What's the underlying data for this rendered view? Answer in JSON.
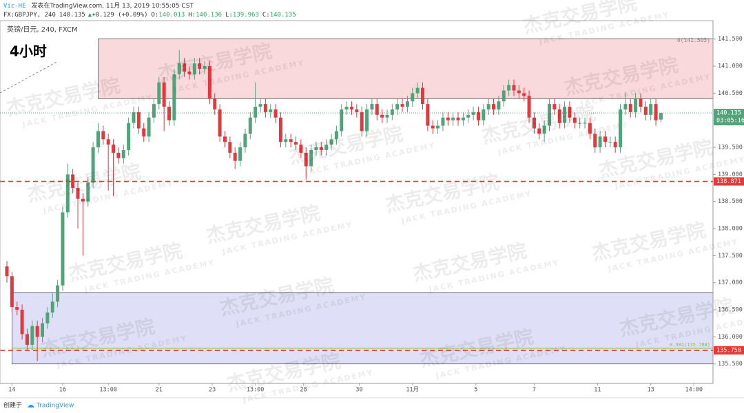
{
  "header": {
    "author": "Vic-HE",
    "published": "发表在TradingView.com, 11月 13, 2019 10:55:05 CST",
    "symbol": "FX:GBPJPY, 240",
    "change": "+0.129 (+0.09%)",
    "o_label": "O:",
    "h_label": "H:",
    "l_label": "L:",
    "c_label": "C:"
  },
  "footer": {
    "created": "创建于",
    "brand": "TradingView"
  },
  "watermark": {
    "cn": "杰克交易学院",
    "en": "JACK TRADING ACADEMY"
  },
  "chart_data": {
    "type": "candlestick",
    "legend": "英镑/日元, 240, FXCM",
    "timeframe": "4小时",
    "countdown": "03:05:16",
    "up_color": "#53a37a",
    "down_color": "#e0393e",
    "grid": false,
    "open": [
      137.3,
      137.12,
      136.55,
      136.5,
      136.05,
      135.85,
      136.2,
      136.0,
      136.25,
      136.45,
      136.65,
      136.95,
      138.3,
      139.0,
      138.75,
      138.55,
      138.5,
      138.85,
      139.5,
      139.8,
      139.65,
      139.55,
      139.4,
      139.3,
      139.45,
      139.95,
      140.15,
      139.85,
      139.7,
      140.05,
      140.3,
      140.7,
      140.25,
      140.0,
      140.85,
      141.05,
      140.9,
      140.85,
      141.05,
      140.95,
      141.0,
      140.4,
      140.2,
      139.7,
      139.6,
      139.4,
      139.25,
      139.5,
      139.75,
      140.05,
      140.25,
      140.3,
      140.15,
      140.2,
      140.05,
      139.6,
      139.65,
      139.6,
      139.55,
      139.4,
      139.15,
      139.45,
      139.5,
      139.45,
      139.55,
      139.65,
      139.8,
      140.2,
      140.25,
      140.2,
      140.15,
      139.8,
      140.2,
      140.3,
      140.1,
      140.05,
      140.1,
      140.2,
      140.3,
      140.25,
      140.35,
      140.5,
      140.6,
      140.3,
      139.9,
      139.85,
      139.9,
      140.05,
      140.0,
      140.05,
      140.0,
      140.05,
      140.1,
      140.15,
      140.0,
      140.2,
      140.3,
      140.2,
      140.35,
      140.55,
      140.65,
      140.55,
      140.5,
      140.45,
      140.05,
      139.85,
      139.75,
      139.9,
      140.3,
      140.2,
      139.95,
      140.25,
      140.05,
      139.95,
      139.95,
      139.95,
      139.75,
      139.5,
      139.7,
      139.6,
      139.6,
      139.5,
      140.2,
      140.3,
      140.15,
      140.4,
      140.25,
      140.1,
      140.3,
      140.013
    ],
    "high": [
      137.4,
      137.2,
      136.65,
      136.6,
      136.15,
      136.3,
      136.3,
      136.35,
      136.55,
      136.8,
      137.05,
      138.4,
      139.2,
      139.1,
      138.85,
      138.65,
      138.95,
      139.6,
      139.95,
      139.9,
      139.75,
      139.65,
      139.5,
      139.55,
      140.05,
      140.25,
      140.25,
      139.95,
      140.15,
      140.4,
      140.8,
      140.8,
      140.35,
      140.95,
      141.3,
      141.15,
      141.0,
      141.15,
      141.15,
      141.1,
      141.1,
      140.5,
      140.3,
      139.8,
      139.7,
      139.5,
      139.6,
      139.85,
      140.15,
      140.7,
      140.4,
      140.4,
      140.3,
      140.3,
      140.15,
      139.75,
      139.75,
      139.7,
      139.65,
      139.5,
      139.55,
      139.6,
      139.6,
      139.65,
      139.75,
      139.9,
      140.3,
      140.35,
      140.35,
      140.3,
      140.25,
      140.3,
      140.4,
      140.4,
      140.2,
      140.2,
      140.3,
      140.4,
      140.4,
      140.45,
      140.6,
      140.7,
      140.7,
      140.4,
      140.0,
      140.0,
      140.15,
      140.15,
      140.15,
      140.15,
      140.15,
      140.2,
      140.25,
      140.25,
      140.3,
      140.4,
      140.4,
      140.45,
      140.65,
      140.75,
      140.75,
      140.65,
      140.6,
      140.55,
      140.15,
      139.95,
      140.0,
      140.4,
      140.4,
      140.3,
      140.35,
      140.35,
      140.15,
      140.05,
      140.05,
      140.05,
      139.85,
      139.8,
      139.8,
      139.7,
      139.7,
      140.3,
      140.5,
      140.4,
      140.5,
      140.5,
      140.35,
      140.4,
      140.4,
      140.136
    ],
    "low": [
      137.0,
      136.45,
      136.4,
      135.95,
      135.75,
      135.75,
      135.55,
      135.9,
      136.15,
      136.35,
      136.55,
      136.85,
      138.2,
      138.65,
      138.0,
      137.5,
      138.4,
      138.75,
      139.4,
      139.55,
      138.7,
      138.6,
      139.2,
      139.2,
      139.35,
      139.85,
      139.75,
      139.6,
      139.6,
      139.95,
      140.2,
      139.8,
      139.9,
      139.9,
      140.75,
      140.8,
      140.75,
      140.75,
      140.85,
      140.85,
      140.3,
      140.1,
      139.6,
      139.5,
      139.3,
      139.1,
      139.15,
      139.4,
      139.65,
      139.95,
      140.15,
      140.05,
      140.05,
      139.95,
      139.5,
      139.5,
      139.5,
      139.45,
      139.3,
      138.9,
      139.05,
      139.35,
      139.35,
      139.35,
      139.45,
      139.55,
      139.7,
      140.1,
      140.1,
      140.05,
      139.7,
      139.7,
      140.1,
      140.0,
      139.95,
      139.95,
      140.0,
      140.1,
      140.15,
      140.15,
      140.25,
      140.4,
      140.2,
      139.8,
      139.75,
      139.75,
      139.8,
      139.9,
      139.9,
      139.9,
      139.9,
      139.95,
      140.0,
      139.9,
      139.9,
      140.1,
      140.1,
      140.1,
      140.25,
      140.45,
      140.45,
      140.4,
      140.35,
      139.95,
      139.75,
      139.65,
      139.6,
      139.8,
      140.1,
      139.85,
      139.85,
      139.95,
      139.85,
      139.85,
      139.85,
      139.65,
      139.4,
      139.4,
      139.5,
      139.5,
      139.4,
      139.4,
      140.1,
      140.05,
      140.05,
      140.15,
      140.0,
      140.0,
      139.9,
      139.963
    ],
    "close": [
      137.12,
      136.55,
      136.5,
      136.05,
      135.85,
      136.2,
      136.0,
      136.25,
      136.45,
      136.65,
      136.95,
      138.3,
      139.0,
      138.75,
      138.55,
      138.5,
      138.85,
      139.5,
      139.8,
      139.65,
      139.55,
      139.4,
      139.3,
      139.45,
      139.95,
      140.15,
      139.85,
      139.7,
      140.05,
      140.3,
      140.7,
      140.25,
      140.0,
      140.85,
      141.05,
      140.9,
      140.85,
      141.05,
      140.95,
      141.0,
      140.4,
      140.2,
      139.7,
      139.6,
      139.4,
      139.25,
      139.5,
      139.75,
      140.05,
      140.25,
      140.3,
      140.15,
      140.2,
      140.05,
      139.6,
      139.65,
      139.6,
      139.55,
      139.4,
      139.15,
      139.45,
      139.5,
      139.45,
      139.55,
      139.65,
      139.8,
      140.2,
      140.25,
      140.2,
      140.15,
      139.8,
      140.2,
      140.3,
      140.1,
      140.05,
      140.1,
      140.2,
      140.3,
      140.25,
      140.35,
      140.5,
      140.6,
      140.3,
      139.9,
      139.85,
      139.9,
      140.05,
      140.0,
      140.05,
      140.0,
      140.05,
      140.1,
      140.15,
      140.0,
      140.2,
      140.3,
      140.2,
      140.35,
      140.55,
      140.65,
      140.55,
      140.5,
      140.45,
      140.05,
      139.85,
      139.75,
      139.9,
      140.3,
      140.2,
      139.95,
      140.25,
      140.05,
      139.95,
      139.95,
      139.95,
      139.75,
      139.5,
      139.7,
      139.6,
      139.6,
      139.5,
      140.2,
      140.3,
      140.15,
      140.4,
      140.25,
      140.1,
      140.3,
      140.0,
      140.135
    ],
    "xlim": [
      -1.36,
      139.27
    ],
    "xticks": [
      {
        "value": 1,
        "label": "14"
      },
      {
        "value": 11,
        "label": "16"
      },
      {
        "value": 20,
        "label": "13:00"
      },
      {
        "value": 30,
        "label": "21"
      },
      {
        "value": 40.5,
        "label": "23"
      },
      {
        "value": 49,
        "label": "13:00"
      },
      {
        "value": 58.5,
        "label": "28"
      },
      {
        "value": 69.5,
        "label": "30"
      },
      {
        "value": 80,
        "label": "11月"
      },
      {
        "value": 92.5,
        "label": "5"
      },
      {
        "value": 104,
        "label": "7"
      },
      {
        "value": 116.5,
        "label": "11"
      },
      {
        "value": 127,
        "label": "13"
      },
      {
        "value": 135.5,
        "label": "14:00"
      }
    ],
    "ylim": [
      135.14,
      141.84
    ],
    "yticks": [
      {
        "value": 135.5,
        "label": "135.500"
      },
      {
        "value": 136,
        "label": "136.000"
      },
      {
        "value": 136.5,
        "label": "136.500"
      },
      {
        "value": 137,
        "label": "137.000"
      },
      {
        "value": 137.5,
        "label": "137.500"
      },
      {
        "value": 138,
        "label": "138.000"
      },
      {
        "value": 138.5,
        "label": "138.500"
      },
      {
        "value": 139,
        "label": "139.000"
      },
      {
        "value": 139.5,
        "label": "139.500"
      },
      {
        "value": 140,
        "label": "140.000"
      },
      {
        "value": 140.5,
        "label": "140.500"
      },
      {
        "value": 141,
        "label": "141.000"
      },
      {
        "value": 141.5,
        "label": "141.500"
      }
    ],
    "zones": [
      {
        "top": 141.505,
        "bottom": 140.4,
        "start": 18,
        "fill": "#f9d9dc",
        "label": "0(141.505)"
      },
      {
        "top": 136.82,
        "bottom": 135.5,
        "start": 1,
        "fill": "#dfdff7"
      }
    ],
    "levels": [
      {
        "value": 138.871,
        "color": "#e53935"
      },
      {
        "value": 135.75,
        "label": "135.750",
        "color": "#e53935"
      }
    ],
    "fib_lines": [
      {
        "value": 135.788,
        "label": "0.382(135.788)",
        "color": "#8bc34a"
      }
    ]
  }
}
